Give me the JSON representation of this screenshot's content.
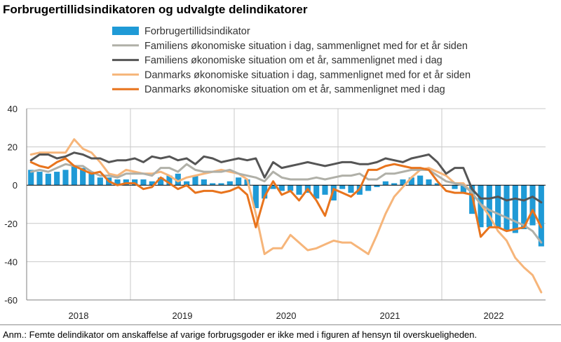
{
  "title": "Forbrugertillidsindikatoren og udvalgte delindikatorer",
  "note": "Anm.: Femte delindikator om anskaffelse af varige forbrugsgoder er ikke med i figuren af hensyn til overskueligheden.",
  "colors": {
    "bar": "#1f9ad6",
    "family_past": "#b0b0a8",
    "family_future": "#555555",
    "denmark_past": "#f6b57a",
    "denmark_future": "#e8741d",
    "grid": "#c8c8c8",
    "axis": "#7f7f7f"
  },
  "chart_data": {
    "type": "bar+line",
    "x_start": "2018-01",
    "x_labels": [
      "2018",
      "2019",
      "2020",
      "2021",
      "2022"
    ],
    "y_ticks": [
      40,
      20,
      0,
      -20,
      -40,
      -60
    ],
    "ylim": [
      -60,
      40
    ],
    "grid": "horizontal+year-dividers",
    "legend_position": "top",
    "series": [
      {
        "name": "Forbrugertillidsindikator",
        "kind": "bar",
        "values": [
          8,
          7,
          6,
          7,
          8,
          10,
          9,
          6,
          4,
          4,
          3,
          3,
          3,
          3,
          2,
          4,
          5,
          6,
          2,
          5,
          3,
          1,
          1,
          2,
          4,
          3,
          -12,
          -7,
          -2,
          -3,
          -3,
          -5,
          -4,
          -7,
          -5,
          -8,
          -2,
          -4,
          -5,
          -3,
          -1,
          2,
          1,
          3,
          4,
          5,
          3,
          1,
          0,
          -2,
          -4,
          -15,
          -22,
          -22,
          -22,
          -24,
          -25,
          -23,
          -21,
          -32
        ]
      },
      {
        "name": "Familiens økonomiske situation i dag, sammenlignet med for et år siden",
        "kind": "line",
        "values": [
          7,
          8,
          7,
          9,
          11,
          10,
          10,
          7,
          5,
          5,
          4,
          6,
          6,
          6,
          5,
          9,
          9,
          7,
          11,
          8,
          7,
          7,
          7,
          8,
          6,
          5,
          4,
          2,
          7,
          4,
          3,
          3,
          3,
          4,
          3,
          4,
          5,
          5,
          6,
          3,
          3,
          6,
          6,
          7,
          8,
          8,
          8,
          5,
          2,
          1,
          0,
          -4,
          -10,
          -13,
          -15,
          -17,
          -19,
          -21,
          -24,
          -30
        ]
      },
      {
        "name": "Familiens økonomiske situation om et år, sammenlignet med i dag",
        "kind": "line",
        "values": [
          13,
          16,
          16,
          14,
          15,
          17,
          16,
          14,
          14,
          12,
          13,
          13,
          14,
          12,
          15,
          14,
          15,
          13,
          14,
          11,
          15,
          14,
          12,
          13,
          14,
          13,
          14,
          4,
          12,
          9,
          10,
          11,
          12,
          11,
          10,
          11,
          12,
          12,
          11,
          11,
          12,
          14,
          13,
          12,
          14,
          15,
          16,
          12,
          6,
          9,
          9,
          -2,
          -7,
          -7,
          -6,
          -8,
          -7,
          -8,
          -6,
          -9
        ]
      },
      {
        "name": "Danmarks økonomiske situation i dag, sammenlignet med for et år siden",
        "kind": "line",
        "values": [
          16,
          17,
          17,
          17,
          17,
          24,
          19,
          17,
          12,
          6,
          5,
          8,
          7,
          6,
          6,
          7,
          5,
          2,
          4,
          5,
          6,
          7,
          8,
          7,
          6,
          3,
          -15,
          -36,
          -33,
          -33,
          -26,
          -30,
          -34,
          -33,
          -31,
          -29,
          -30,
          -30,
          -33,
          -36,
          -26,
          -15,
          -6,
          -1,
          4,
          8,
          9,
          7,
          5,
          1,
          1,
          -4,
          -10,
          -16,
          -24,
          -29,
          -38,
          -43,
          -47,
          -56
        ]
      },
      {
        "name": "Danmarks økonomiske situation om et år, sammenlignet med i dag",
        "kind": "line",
        "values": [
          12,
          10,
          9,
          12,
          14,
          10,
          8,
          6,
          7,
          2,
          0,
          1,
          1,
          -2,
          -1,
          4,
          1,
          -2,
          0,
          -4,
          -3,
          -3,
          -4,
          -3,
          -1,
          -5,
          -22,
          -6,
          2,
          -5,
          -3,
          -8,
          -2,
          -8,
          -16,
          -2,
          -4,
          -6,
          -2,
          8,
          8,
          10,
          11,
          10,
          9,
          9,
          8,
          2,
          -3,
          -4,
          -4,
          -5,
          -27,
          -22,
          -22,
          -24,
          -23,
          -22,
          -13,
          -22
        ]
      }
    ]
  }
}
